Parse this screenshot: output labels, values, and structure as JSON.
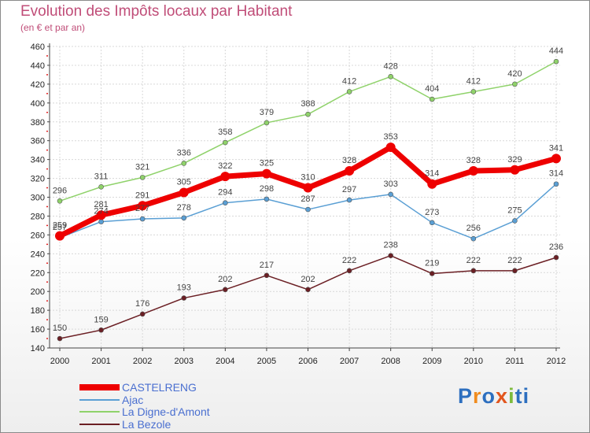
{
  "header": {
    "title": "Evolution des Impôts locaux par Habitant",
    "subtitle": "(en € et par an)"
  },
  "logo": {
    "text": "Proxiti",
    "letters": [
      "P",
      "r",
      "o",
      "x",
      "i",
      "t",
      "i"
    ]
  },
  "colors": {
    "title": "#c04d78",
    "axis": "#444444",
    "grid": "#d8d8d8",
    "legend_text": "#4a6fd0",
    "logo_letters": [
      "#2d6fbf",
      "#f08c1e",
      "#2d6fbf",
      "#e2561e",
      "#7dbb3c",
      "#2d6fbf",
      "#2d6fbf"
    ]
  },
  "chart_data": {
    "type": "line",
    "title": "Evolution des Impôts locaux par Habitant",
    "subtitle": "(en € et par an)",
    "xlabel": "",
    "ylabel": "",
    "x": [
      "2000",
      "2001",
      "2002",
      "2003",
      "2004",
      "2005",
      "2006",
      "2007",
      "2008",
      "2009",
      "2010",
      "2011",
      "2012"
    ],
    "ylim": [
      140,
      460
    ],
    "yticks": [
      "140",
      "160",
      "180",
      "200",
      "220",
      "240",
      "260",
      "280",
      "300",
      "320",
      "340",
      "360",
      "380",
      "400",
      "420",
      "440",
      "460"
    ],
    "grid": true,
    "legend_position": "bottom-left",
    "series": [
      {
        "name": "CASTELRENG",
        "color": "#ee0000",
        "width": 7,
        "marker_r": 6,
        "values": [
          259,
          281,
          291,
          305,
          322,
          325,
          310,
          328,
          353,
          314,
          328,
          329,
          341
        ]
      },
      {
        "name": "Ajac",
        "color": "#5a9fd4",
        "width": 1.5,
        "marker_r": 3,
        "values": [
          257,
          274,
          277,
          278,
          294,
          298,
          287,
          297,
          303,
          273,
          256,
          275,
          314
        ]
      },
      {
        "name": "La Digne-d'Amont",
        "color": "#8fd26a",
        "width": 1.5,
        "marker_r": 3,
        "values": [
          296,
          311,
          321,
          336,
          358,
          379,
          388,
          412,
          428,
          404,
          412,
          420,
          444
        ]
      },
      {
        "name": "La Bezole",
        "color": "#6b1f24",
        "width": 1.5,
        "marker_r": 3,
        "values": [
          150,
          159,
          176,
          193,
          202,
          217,
          202,
          222,
          238,
          219,
          222,
          222,
          236
        ]
      }
    ]
  }
}
